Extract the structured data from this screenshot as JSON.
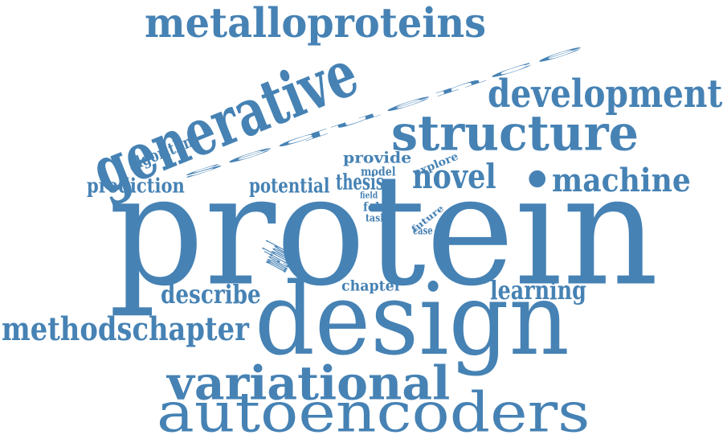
{
  "colors": {
    "word": "#4682b4",
    "background": "#ffffff"
  },
  "words": [
    {
      "id": "protein",
      "text": "protein",
      "bold": false
    },
    {
      "id": "design",
      "text": "design",
      "bold": false
    },
    {
      "id": "sequence",
      "text": "sequence",
      "bold": false
    },
    {
      "id": "autoencoders",
      "text": "autoencoders",
      "bold": false
    },
    {
      "id": "metalloproteins",
      "text": "metalloproteins",
      "bold": true
    },
    {
      "id": "generative",
      "text": "generative",
      "bold": true
    },
    {
      "id": "structure",
      "text": "structure",
      "bold": true
    },
    {
      "id": "development",
      "text": "development",
      "bold": true
    },
    {
      "id": "variational",
      "text": "variational",
      "bold": true
    },
    {
      "id": "methodschapter",
      "text": "methodschapter",
      "bold": true
    },
    {
      "id": "machine",
      "text": "machine",
      "bold": true
    },
    {
      "id": "novel",
      "text": "novel",
      "bold": true
    },
    {
      "id": "learning",
      "text": "learning",
      "bold": true
    },
    {
      "id": "describe",
      "text": "describe",
      "bold": true
    },
    {
      "id": "prediction",
      "text": "prediction",
      "bold": true
    },
    {
      "id": "potential",
      "text": "potential",
      "bold": true
    },
    {
      "id": "thesis",
      "text": "thesis",
      "bold": true
    },
    {
      "id": "algorithm",
      "text": "algorithm",
      "bold": true
    },
    {
      "id": "provide",
      "text": "provide",
      "bold": true
    },
    {
      "id": "explore",
      "text": "explore",
      "bold": true
    },
    {
      "id": "model",
      "text": "model",
      "bold": true
    },
    {
      "id": "chapter",
      "text": "chapter",
      "bold": true
    },
    {
      "id": "method",
      "text": "method",
      "bold": true
    },
    {
      "id": "field",
      "text": "field",
      "bold": true
    },
    {
      "id": "fold",
      "text": "fold",
      "bold": true
    },
    {
      "id": "task",
      "text": "task",
      "bold": true
    },
    {
      "id": "future",
      "text": "future",
      "bold": true
    },
    {
      "id": "case",
      "text": "case",
      "bold": true
    }
  ]
}
